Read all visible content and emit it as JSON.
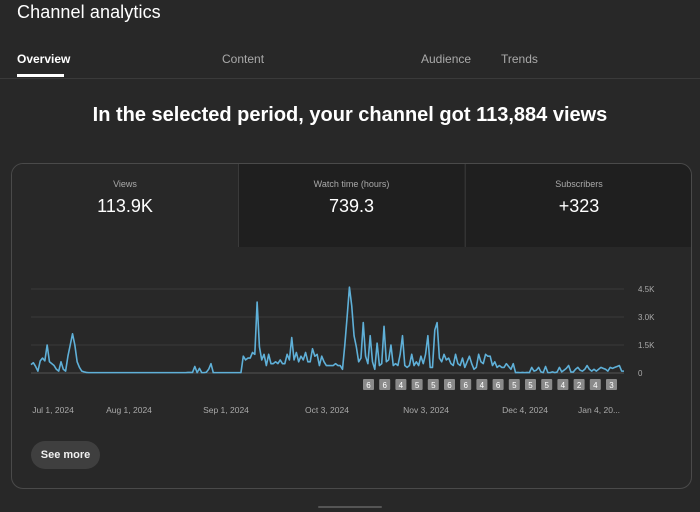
{
  "page": {
    "title": "Channel analytics"
  },
  "tabs": [
    {
      "label": "Overview",
      "active": true
    },
    {
      "label": "Content",
      "active": false
    },
    {
      "label": "Audience",
      "active": false
    },
    {
      "label": "Trends",
      "active": false
    }
  ],
  "headline": "In the selected period, your channel got 113,884 views",
  "metrics": [
    {
      "label": "Views",
      "value": "113.9K"
    },
    {
      "label": "Watch time (hours)",
      "value": "739.3"
    },
    {
      "label": "Subscribers",
      "value": "+323"
    }
  ],
  "see_more_label": "See more",
  "colors": {
    "line": "#5fb0d8",
    "accent_background": "#282828"
  },
  "chart_data": {
    "type": "line",
    "series": [
      {
        "values": [
          450,
          550,
          350,
          100,
          650,
          800,
          650,
          1500,
          600,
          500,
          400,
          200,
          100,
          600,
          200,
          100,
          900,
          1500,
          2100,
          1500,
          600,
          300,
          100,
          60,
          30,
          20,
          20,
          20,
          20,
          20,
          20,
          20,
          20,
          20,
          20,
          20,
          20,
          20,
          20,
          20,
          20,
          20,
          20,
          20,
          20,
          20,
          20,
          20,
          20,
          20,
          20,
          20,
          20,
          20,
          20,
          20,
          20,
          20,
          20,
          20,
          20,
          20,
          20,
          20,
          20,
          20,
          20,
          20,
          30,
          30,
          30,
          350,
          20,
          250,
          20,
          20,
          40,
          200,
          500,
          20,
          20,
          20,
          20,
          20,
          20,
          20,
          20,
          20,
          20,
          20,
          20,
          20,
          900,
          700,
          800,
          800,
          1100,
          1000,
          3800,
          1400,
          700,
          1000,
          400,
          1000,
          500,
          500,
          600,
          500,
          700,
          500,
          500,
          1000,
          700,
          1900,
          700,
          1100,
          600,
          900,
          700,
          1100,
          600,
          600,
          1300,
          900,
          1000,
          400,
          900,
          600,
          400,
          400,
          400,
          400,
          500,
          400,
          400,
          200,
          1500,
          3000,
          4600,
          3600,
          2000,
          1400,
          600,
          800,
          2700,
          900,
          500,
          2000,
          600,
          200,
          1600,
          400,
          500,
          2500,
          600,
          700,
          1500,
          400,
          500,
          400,
          1000,
          2000,
          400,
          300,
          400,
          1000,
          400,
          600,
          400,
          900,
          500,
          1000,
          2000,
          300,
          300,
          2300,
          2700,
          800,
          600,
          1000,
          700,
          800,
          500,
          400,
          1000,
          500,
          400,
          800,
          300,
          600,
          900,
          500,
          200,
          300,
          1000,
          600,
          500,
          1000,
          900,
          900,
          400,
          600,
          300,
          400,
          300,
          300,
          500,
          350,
          200,
          500,
          20,
          30,
          20,
          30,
          20,
          30,
          20,
          300,
          100,
          150,
          300,
          60,
          20,
          350,
          20,
          20,
          60,
          20,
          50,
          300,
          60,
          150,
          250,
          400,
          50,
          50,
          200,
          300,
          150,
          100,
          200,
          400,
          200,
          100,
          200,
          100,
          200,
          300,
          250,
          200,
          100,
          300,
          250,
          300,
          350,
          400,
          100,
          100
        ]
      }
    ],
    "x_tick_labels": [
      "Jul 1, 2024",
      "Aug 1, 2024",
      "Sep 1, 2024",
      "Oct 3, 2024",
      "Nov 3, 2024",
      "Dec 4, 2024",
      "Jan 4, 20..."
    ],
    "y_tick_labels": [
      "4.5K",
      "3.0K",
      "1.5K",
      "0"
    ],
    "ylim": [
      0,
      4500
    ],
    "grid": true,
    "markers": [
      "6",
      "6",
      "4",
      "5",
      "5",
      "6",
      "6",
      "4",
      "6",
      "5",
      "5",
      "5",
      "4",
      "2",
      "4",
      "3"
    ]
  }
}
